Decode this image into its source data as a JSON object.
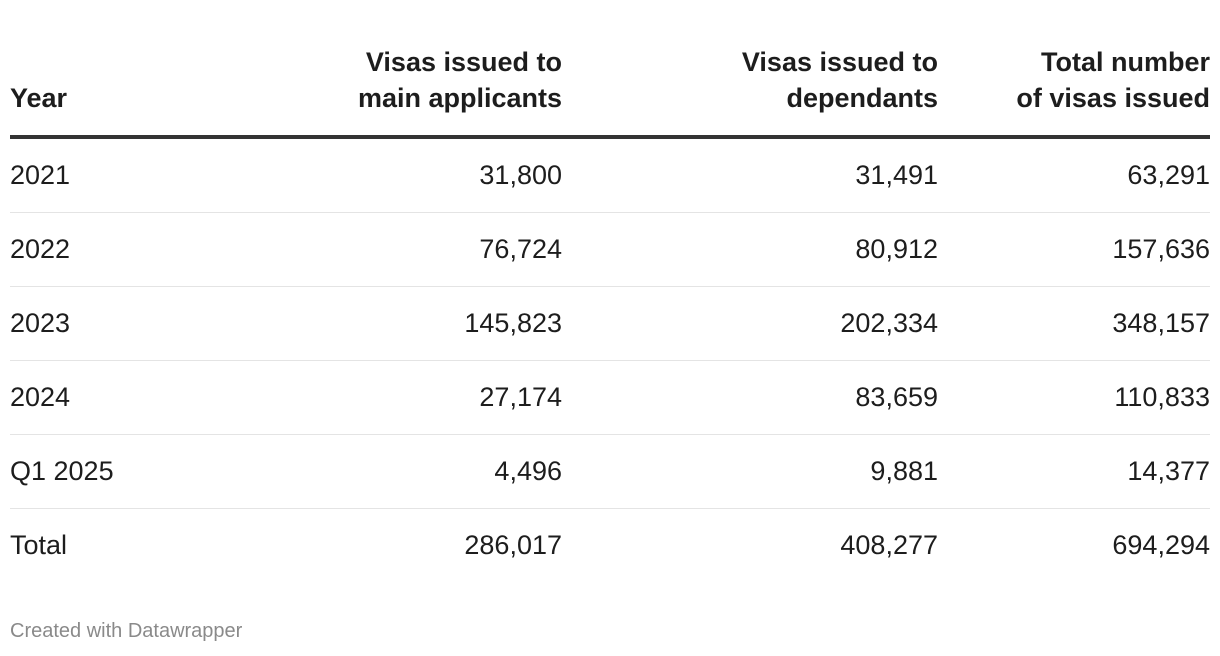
{
  "chart_data": {
    "type": "table",
    "columns": [
      "Year",
      "Visas issued to main applicants",
      "Visas issued to dependants",
      "Total number of visas issued"
    ],
    "header_lines": [
      [
        "Year"
      ],
      [
        "Visas issued to",
        "main applicants"
      ],
      [
        "Visas issued to",
        "dependants"
      ],
      [
        "Total number",
        "of visas issued"
      ]
    ],
    "rows": [
      [
        "2021",
        "31,800",
        "31,491",
        "63,291"
      ],
      [
        "2022",
        "76,724",
        "80,912",
        "157,636"
      ],
      [
        "2023",
        "145,823",
        "202,334",
        "348,157"
      ],
      [
        "2024",
        "27,174",
        "83,659",
        "110,833"
      ],
      [
        "Q1 2025",
        "4,496",
        "9,881",
        "14,377"
      ],
      [
        "Total",
        "286,017",
        "408,277",
        "694,294"
      ]
    ],
    "values": {
      "main_applicants": [
        31800,
        76724,
        145823,
        27174,
        4496,
        286017
      ],
      "dependants": [
        31491,
        80912,
        202334,
        83659,
        9881,
        408277
      ],
      "total": [
        63291,
        157636,
        348157,
        110833,
        14377,
        694294
      ]
    }
  },
  "footer": {
    "credit": "Created with Datawrapper"
  },
  "colors": {
    "text": "#1d1d1d",
    "header_rule": "#333333",
    "row_rule": "#e4e4e4",
    "credit": "#8a8a8a"
  }
}
